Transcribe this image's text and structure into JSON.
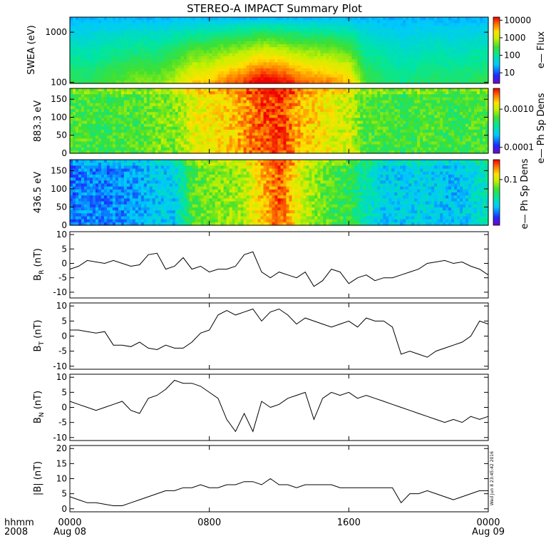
{
  "title": "STEREO-A IMPACT Summary Plot",
  "chart_data": [
    {
      "type": "heatmap",
      "panel": "swea",
      "ylabel": "SWEA (eV)",
      "yscale": "log",
      "ylim": [
        95,
        2000
      ],
      "yticks": [
        "1000",
        "100"
      ],
      "colorbar": {
        "label": "e—  Flux",
        "scale": "log",
        "ticks": [
          "10000",
          "1000",
          "100",
          "10"
        ]
      },
      "ridge": [
        [
          0,
          0.42
        ],
        [
          1,
          0.4
        ],
        [
          2,
          0.45
        ],
        [
          3,
          0.48
        ],
        [
          4,
          0.52
        ],
        [
          5,
          0.5
        ],
        [
          6,
          0.58
        ],
        [
          7,
          0.7
        ],
        [
          8,
          0.72
        ],
        [
          9,
          0.8
        ],
        [
          10,
          0.85
        ],
        [
          11,
          0.95
        ],
        [
          12,
          0.92
        ],
        [
          13,
          0.85
        ],
        [
          14,
          0.8
        ],
        [
          15,
          0.78
        ],
        [
          16,
          0.72
        ],
        [
          17,
          0.45
        ],
        [
          18,
          0.4
        ],
        [
          19,
          0.35
        ],
        [
          20,
          0.38
        ],
        [
          21,
          0.4
        ],
        [
          22,
          0.38
        ],
        [
          23,
          0.4
        ],
        [
          24,
          0.42
        ]
      ]
    },
    {
      "type": "heatmap",
      "panel": "pad883",
      "ylabel": "883.3 eV",
      "ylim": [
        0,
        180
      ],
      "yticks": [
        "150",
        "100",
        "50",
        "0"
      ],
      "colorbar": {
        "label": "e—  Ph Sp Dens",
        "scale": "log",
        "ticks": [
          "0.0010",
          "0.0001"
        ]
      },
      "ridge": [
        [
          0,
          0.55
        ],
        [
          1,
          0.55
        ],
        [
          2,
          0.52
        ],
        [
          3,
          0.55
        ],
        [
          4,
          0.55
        ],
        [
          5,
          0.6
        ],
        [
          6,
          0.6
        ],
        [
          7,
          0.72
        ],
        [
          8,
          0.75
        ],
        [
          9,
          0.78
        ],
        [
          10,
          0.85
        ],
        [
          11,
          0.92
        ],
        [
          12,
          0.95
        ],
        [
          13,
          0.85
        ],
        [
          14,
          0.78
        ],
        [
          15,
          0.72
        ],
        [
          16,
          0.7
        ],
        [
          17,
          0.55
        ],
        [
          18,
          0.55
        ],
        [
          19,
          0.52
        ],
        [
          20,
          0.55
        ],
        [
          21,
          0.55
        ],
        [
          22,
          0.52
        ],
        [
          23,
          0.55
        ],
        [
          24,
          0.55
        ]
      ]
    },
    {
      "type": "heatmap",
      "panel": "pad436",
      "ylabel": "436.5 eV",
      "ylim": [
        0,
        180
      ],
      "yticks": [
        "150",
        "100",
        "50",
        "0"
      ],
      "colorbar": {
        "label": "e—  Ph Sp Dens",
        "scale": "log",
        "ticks": [
          "0.1"
        ]
      },
      "ridge": [
        [
          0,
          0.18
        ],
        [
          1,
          0.22
        ],
        [
          2,
          0.2
        ],
        [
          3,
          0.22
        ],
        [
          4,
          0.25
        ],
        [
          5,
          0.3
        ],
        [
          6,
          0.3
        ],
        [
          7,
          0.55
        ],
        [
          8,
          0.6
        ],
        [
          9,
          0.62
        ],
        [
          10,
          0.65
        ],
        [
          11,
          0.8
        ],
        [
          12,
          0.92
        ],
        [
          13,
          0.75
        ],
        [
          14,
          0.62
        ],
        [
          15,
          0.55
        ],
        [
          16,
          0.52
        ],
        [
          17,
          0.4
        ],
        [
          18,
          0.3
        ],
        [
          19,
          0.3
        ],
        [
          20,
          0.32
        ],
        [
          21,
          0.3
        ],
        [
          22,
          0.28
        ],
        [
          23,
          0.32
        ],
        [
          24,
          0.4
        ]
      ]
    },
    {
      "type": "line",
      "panel": "br",
      "ylabel": [
        "B",
        "R",
        " (nT)"
      ],
      "ylim": [
        -12,
        11
      ],
      "yticks": [
        10,
        5,
        0,
        -5,
        -10
      ],
      "x": [
        0,
        0.5,
        1,
        1.5,
        2,
        2.5,
        3,
        3.5,
        4,
        4.5,
        5,
        5.5,
        6,
        6.5,
        7,
        7.5,
        8,
        8.5,
        9,
        9.5,
        10,
        10.5,
        11,
        11.5,
        12,
        12.5,
        13,
        13.5,
        14,
        14.5,
        15,
        15.5,
        16,
        16.5,
        17,
        17.5,
        18,
        18.5,
        19,
        19.5,
        20,
        20.5,
        21,
        21.5,
        22,
        22.5,
        23,
        23.5,
        24
      ],
      "y": [
        -2,
        -1,
        1,
        0.5,
        0,
        1,
        0,
        -1,
        -0.5,
        3,
        3.5,
        -2,
        -1,
        2,
        -2,
        -1,
        -3,
        -2,
        -2,
        -1,
        3,
        4,
        -3,
        -5,
        -3,
        -4,
        -5,
        -3,
        -8,
        -6,
        -2,
        -3,
        -7,
        -5,
        -4,
        -6,
        -5,
        -5,
        -4,
        -3,
        -2,
        0,
        0.5,
        1,
        0,
        0.5,
        -1,
        -2,
        -4
      ]
    },
    {
      "type": "line",
      "panel": "bt",
      "ylabel": [
        "B",
        "T",
        " (nT)"
      ],
      "ylim": [
        -11,
        11
      ],
      "yticks": [
        10,
        5,
        0,
        -5,
        -10
      ],
      "x": [
        0,
        0.5,
        1,
        1.5,
        2,
        2.5,
        3,
        3.5,
        4,
        4.5,
        5,
        5.5,
        6,
        6.5,
        7,
        7.5,
        8,
        8.5,
        9,
        9.5,
        10,
        10.5,
        11,
        11.5,
        12,
        12.5,
        13,
        13.5,
        14,
        14.5,
        15,
        15.5,
        16,
        16.5,
        17,
        17.5,
        18,
        18.5,
        19,
        19.5,
        20,
        20.5,
        21,
        21.5,
        22,
        22.5,
        23,
        23.5,
        24
      ],
      "y": [
        2,
        2,
        1.5,
        1,
        1.5,
        -3,
        -3,
        -3.5,
        -2,
        -4,
        -4.5,
        -3,
        -4,
        -4,
        -2,
        1,
        2,
        7,
        8.5,
        7,
        8,
        9,
        5,
        8,
        9,
        7,
        4,
        6,
        5,
        4,
        3,
        4,
        5,
        3,
        6,
        5,
        5,
        3,
        -6,
        -5,
        -6,
        -7,
        -5,
        -4,
        -3,
        -2,
        0,
        5,
        4
      ]
    },
    {
      "type": "line",
      "panel": "bn",
      "ylabel": [
        "B",
        "N",
        " (nT)"
      ],
      "ylim": [
        -11,
        11
      ],
      "yticks": [
        10,
        5,
        0,
        -5,
        -10
      ],
      "x": [
        0,
        0.5,
        1,
        1.5,
        2,
        2.5,
        3,
        3.5,
        4,
        4.5,
        5,
        5.5,
        6,
        6.5,
        7,
        7.5,
        8,
        8.5,
        9,
        9.5,
        10,
        10.5,
        11,
        11.5,
        12,
        12.5,
        13,
        13.5,
        14,
        14.5,
        15,
        15.5,
        16,
        16.5,
        17,
        17.5,
        18,
        18.5,
        19,
        19.5,
        20,
        20.5,
        21,
        21.5,
        22,
        22.5,
        23,
        23.5,
        24
      ],
      "y": [
        2,
        1,
        0,
        -1,
        0,
        1,
        2,
        -1,
        -2,
        3,
        4,
        6,
        9,
        8,
        8,
        7,
        5,
        3,
        -4,
        -8,
        -2,
        -8,
        2,
        0,
        1,
        3,
        4,
        5,
        -4,
        3,
        5,
        4,
        5,
        3,
        4,
        3,
        2,
        1,
        0,
        -1,
        -2,
        -3,
        -4,
        -5,
        -4,
        -5,
        -3,
        -4,
        -3
      ]
    },
    {
      "type": "line",
      "panel": "bmag",
      "ylabel": [
        "|B| (nT)"
      ],
      "ylim": [
        -1,
        21
      ],
      "yticks": [
        20,
        15,
        10,
        5,
        0
      ],
      "x": [
        0,
        0.5,
        1,
        1.5,
        2,
        2.5,
        3,
        3.5,
        4,
        4.5,
        5,
        5.5,
        6,
        6.5,
        7,
        7.5,
        8,
        8.5,
        9,
        9.5,
        10,
        10.5,
        11,
        11.5,
        12,
        12.5,
        13,
        13.5,
        14,
        14.5,
        15,
        15.5,
        16,
        16.5,
        17,
        17.5,
        18,
        18.5,
        19,
        19.5,
        20,
        20.5,
        21,
        21.5,
        22,
        22.5,
        23,
        23.5,
        24
      ],
      "y": [
        4,
        3,
        2,
        2,
        1.5,
        1,
        1,
        2,
        3,
        4,
        5,
        6,
        6,
        7,
        7,
        8,
        7,
        7,
        8,
        8,
        9,
        9,
        8,
        10,
        8,
        8,
        7,
        8,
        8,
        8,
        8,
        7,
        7,
        7,
        7,
        7,
        7,
        7,
        2,
        5,
        5,
        6,
        5,
        4,
        3,
        4,
        5,
        6,
        6
      ]
    }
  ],
  "xaxis": {
    "row_label_1": "hhmm",
    "row_label_2": "2008",
    "xlim": [
      0,
      24
    ],
    "ticks": [
      {
        "hour": 0,
        "label": "0000",
        "date": "Aug 08"
      },
      {
        "hour": 8,
        "label": "0800",
        "date": ""
      },
      {
        "hour": 16,
        "label": "1600",
        "date": ""
      },
      {
        "hour": 24,
        "label": "0000",
        "date": "Aug 09"
      }
    ]
  },
  "timestamp": "Wed Jun  8 23:45:42 2016"
}
